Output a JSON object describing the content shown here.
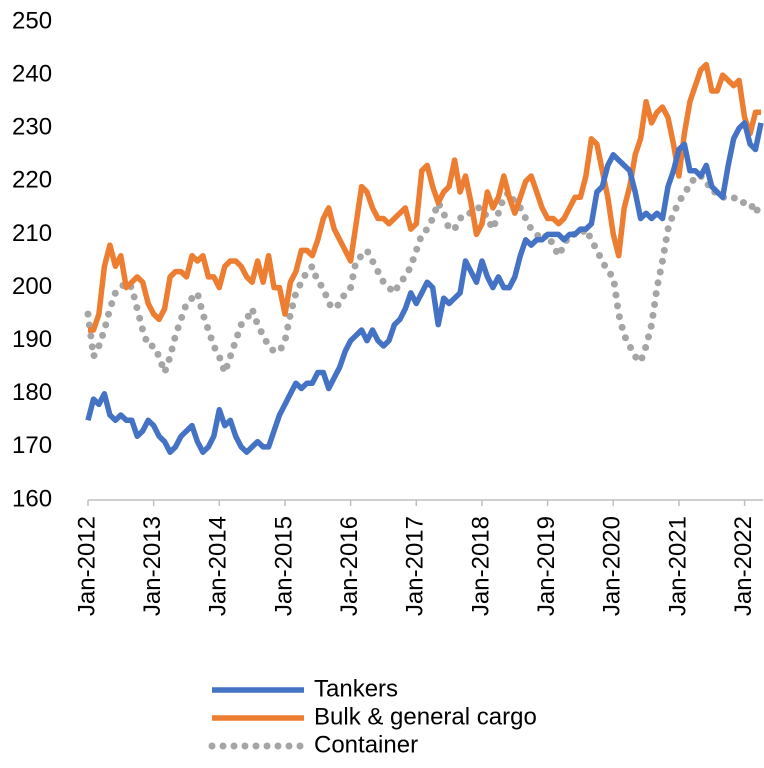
{
  "chart_data": {
    "type": "line",
    "categories": [
      "Jan-2012",
      null,
      null,
      null,
      null,
      null,
      null,
      null,
      null,
      null,
      null,
      null,
      "Jan-2013",
      null,
      null,
      null,
      null,
      null,
      null,
      null,
      null,
      null,
      null,
      null,
      "Jan-2014",
      null,
      null,
      null,
      null,
      null,
      null,
      null,
      null,
      null,
      null,
      null,
      "Jan-2015",
      null,
      null,
      null,
      null,
      null,
      null,
      null,
      null,
      null,
      null,
      null,
      "Jan-2016",
      null,
      null,
      null,
      null,
      null,
      null,
      null,
      null,
      null,
      null,
      null,
      "Jan-2017",
      null,
      null,
      null,
      null,
      null,
      null,
      null,
      null,
      null,
      null,
      null,
      "Jan-2018",
      null,
      null,
      null,
      null,
      null,
      null,
      null,
      null,
      null,
      null,
      null,
      "Jan-2019",
      null,
      null,
      null,
      null,
      null,
      null,
      null,
      null,
      null,
      null,
      null,
      "Jan-2020",
      null,
      null,
      null,
      null,
      null,
      null,
      null,
      null,
      null,
      null,
      null,
      "Jan-2021",
      null,
      null,
      null,
      null,
      null,
      null,
      null,
      null,
      null,
      null,
      null,
      "Jan-2022",
      null,
      null,
      null
    ],
    "series": [
      {
        "name": "Tankers",
        "color": "#4472c4",
        "style": "solid",
        "values": [
          175,
          179,
          178,
          180,
          176,
          175,
          176,
          175,
          175,
          172,
          173,
          175,
          174,
          172,
          171,
          169,
          170,
          172,
          173,
          174,
          171,
          169,
          170,
          172,
          177,
          174,
          175,
          172,
          170,
          169,
          170,
          171,
          170,
          170,
          173,
          176,
          178,
          180,
          182,
          181,
          182,
          182,
          184,
          184,
          181,
          183,
          185,
          188,
          190,
          191,
          192,
          190,
          192,
          190,
          189,
          190,
          193,
          194,
          196,
          199,
          197,
          199,
          201,
          200,
          193,
          198,
          197,
          198,
          199,
          205,
          203,
          201,
          205,
          202,
          200,
          202,
          200,
          200,
          202,
          206,
          209,
          208,
          209,
          209,
          210,
          210,
          210,
          209,
          210,
          210,
          211,
          211,
          212,
          218,
          219,
          223,
          225,
          224,
          223,
          222,
          218,
          213,
          214,
          213,
          214,
          213,
          219,
          222,
          226,
          227,
          222,
          222,
          221,
          223,
          219,
          218,
          217,
          223,
          228,
          230,
          231,
          227,
          226,
          231
        ]
      },
      {
        "name": "Bulk & general cargo",
        "color": "#ed7d31",
        "style": "solid",
        "values": [
          192,
          192,
          195,
          204,
          208,
          204,
          206,
          200,
          201,
          202,
          201,
          197,
          195,
          194,
          196,
          202,
          203,
          203,
          202,
          206,
          205,
          206,
          202,
          202,
          200,
          204,
          205,
          205,
          204,
          202,
          201,
          205,
          201,
          206,
          200,
          200,
          195,
          201,
          203,
          207,
          207,
          206,
          209,
          213,
          215,
          211,
          209,
          207,
          205,
          212,
          219,
          218,
          215,
          213,
          213,
          212,
          213,
          214,
          215,
          211,
          212,
          222,
          223,
          219,
          216,
          218,
          219,
          224,
          218,
          221,
          216,
          210,
          212,
          218,
          215,
          217,
          221,
          217,
          214,
          217,
          220,
          221,
          218,
          215,
          213,
          213,
          212,
          213,
          215,
          217,
          217,
          221,
          228,
          227,
          222,
          217,
          210,
          206,
          215,
          219,
          225,
          228,
          235,
          231,
          233,
          234,
          232,
          227,
          221,
          229,
          235,
          238,
          241,
          242,
          237,
          237,
          240,
          239,
          238,
          239,
          232,
          229,
          233,
          233
        ]
      },
      {
        "name": "Container",
        "color": "#a5a5a5",
        "style": "dotted",
        "values": [
          195,
          187,
          189,
          192,
          196,
          199,
          200,
          201,
          200,
          196,
          192,
          189,
          189,
          187,
          184,
          187,
          191,
          194,
          197,
          198,
          199,
          195,
          192,
          189,
          187,
          184,
          187,
          190,
          193,
          194,
          196,
          193,
          191,
          189,
          188,
          188,
          190,
          195,
          199,
          201,
          203,
          204,
          201,
          200,
          197,
          196,
          197,
          199,
          200,
          205,
          206,
          207,
          205,
          203,
          201,
          200,
          199,
          201,
          202,
          204,
          207,
          210,
          211,
          213,
          216,
          214,
          211,
          211,
          213,
          214,
          214,
          215,
          215,
          213,
          211,
          214,
          217,
          218,
          216,
          215,
          213,
          211,
          210,
          209,
          210,
          208,
          206,
          208,
          210,
          210,
          210,
          211,
          209,
          207,
          205,
          203,
          202,
          195,
          191,
          189,
          187,
          186,
          189,
          193,
          200,
          205,
          211,
          214,
          216,
          218,
          219,
          221,
          221,
          220,
          218,
          218,
          217,
          217,
          217,
          216,
          216,
          216,
          214,
          216
        ]
      }
    ],
    "ylim": [
      160,
      250
    ],
    "yticks": [
      160,
      170,
      180,
      190,
      200,
      210,
      220,
      230,
      240,
      250
    ],
    "legend": "bottom"
  }
}
